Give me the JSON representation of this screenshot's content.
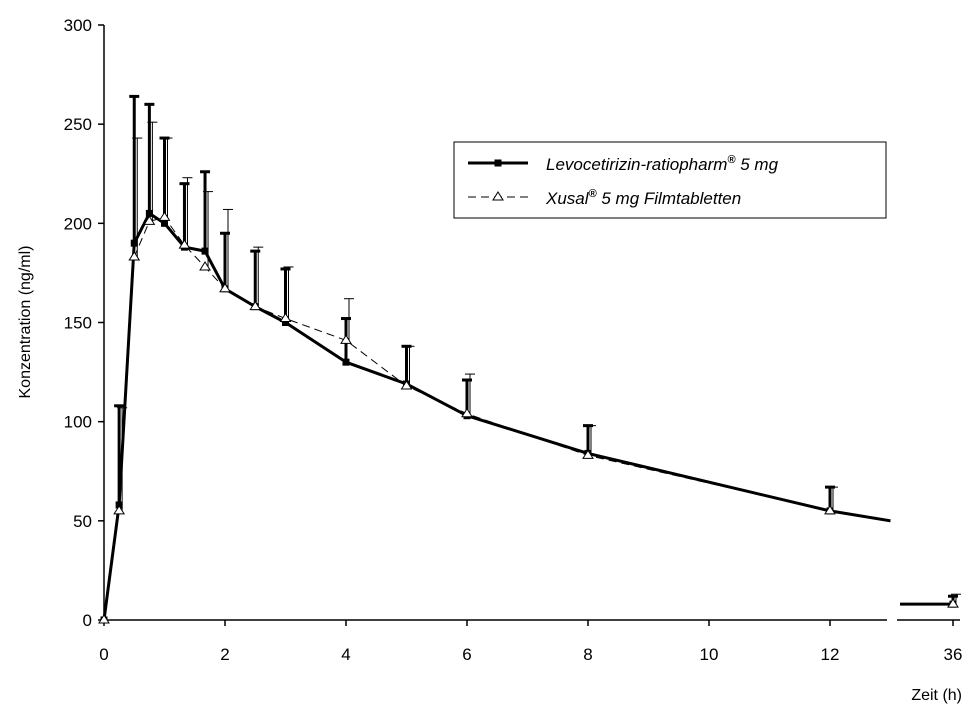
{
  "chart_data": {
    "type": "line",
    "xlabel": "Zeit (h)",
    "ylabel": "Konzentration (ng/ml)",
    "xlim": [
      0,
      13
    ],
    "ylim": [
      0,
      300
    ],
    "x_ticks": [
      0,
      2,
      4,
      6,
      8,
      10,
      12
    ],
    "x_tick_labels": [
      "0",
      "2",
      "4",
      "6",
      "8",
      "10",
      "12"
    ],
    "y_ticks": [
      0,
      50,
      100,
      150,
      200,
      250,
      300
    ],
    "y_tick_labels": [
      "0",
      "50",
      "100",
      "150",
      "200",
      "250",
      "300"
    ],
    "x_break_tick_label": "36",
    "legend_position": "top-right",
    "series": [
      {
        "name": "Levocetirizin-ratiopharm® 5 mg",
        "legend_main": "Levocetirizin-ratiopharm",
        "legend_suffix": " 5 mg",
        "style": "solid-thick",
        "marker": "square",
        "color": "#000000",
        "x": [
          0,
          0.25,
          0.5,
          0.75,
          1,
          1.33,
          1.67,
          2,
          2.5,
          3,
          4,
          5,
          6,
          8,
          12,
          13
        ],
        "y": [
          0,
          58,
          190,
          205,
          200,
          188,
          186,
          167,
          158,
          150,
          130,
          119,
          103,
          84,
          55,
          50
        ],
        "error": [
          0,
          50,
          74,
          55,
          43,
          32,
          40,
          28,
          28,
          27,
          22,
          19,
          18,
          14,
          12,
          0
        ],
        "x_break": [
          36
        ],
        "y_break": [
          8
        ],
        "error_break": [
          4
        ]
      },
      {
        "name": "Xusal® 5 mg Filmtabletten",
        "legend_main": "Xusal",
        "legend_suffix": " 5 mg Filmtabletten",
        "style": "dashed-thin",
        "marker": "triangle",
        "color": "#000000",
        "x": [
          0,
          0.25,
          0.5,
          0.75,
          1,
          1.33,
          1.67,
          2,
          2.5,
          3,
          4,
          5,
          6,
          8,
          12
        ],
        "y": [
          0,
          55,
          183,
          201,
          203,
          189,
          178,
          167,
          158,
          152,
          141,
          118,
          104,
          83,
          55
        ],
        "error": [
          0,
          52,
          60,
          50,
          40,
          34,
          38,
          40,
          30,
          26,
          21,
          20,
          20,
          15,
          12
        ],
        "x_break": [
          36
        ],
        "y_break": [
          8
        ],
        "error_break": [
          5
        ]
      }
    ]
  }
}
